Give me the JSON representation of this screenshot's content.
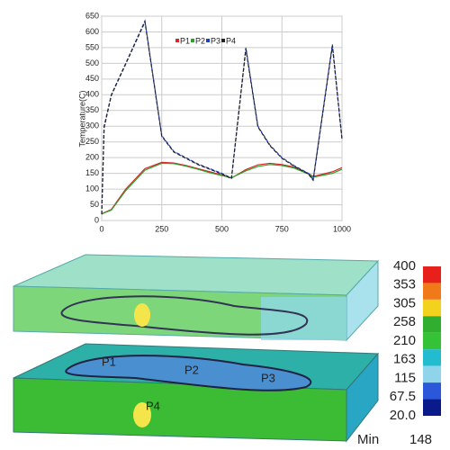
{
  "chart_data": {
    "type": "line",
    "y_label": "Temperature(C)",
    "x": [
      0,
      10,
      40,
      100,
      180,
      250,
      300,
      350,
      400,
      450,
      500,
      540,
      600,
      650,
      700,
      750,
      800,
      860,
      880,
      960,
      1000
    ],
    "series": [
      {
        "name": "P1",
        "color": "#d62728",
        "dashed": false,
        "values": [
          20,
          25,
          35,
          100,
          165,
          185,
          183,
          175,
          165,
          155,
          145,
          135,
          162,
          177,
          182,
          178,
          170,
          150,
          140,
          155,
          168
        ]
      },
      {
        "name": "P2",
        "color": "#2ca02c",
        "dashed": false,
        "values": [
          20,
          24,
          33,
          95,
          160,
          182,
          181,
          173,
          163,
          152,
          143,
          136,
          158,
          172,
          178,
          175,
          167,
          148,
          138,
          150,
          163
        ]
      },
      {
        "name": "P3",
        "color": "#1f3fbf",
        "dashed": true,
        "values": [
          20,
          300,
          400,
          500,
          635,
          270,
          220,
          200,
          180,
          165,
          150,
          135,
          550,
          300,
          240,
          200,
          175,
          150,
          130,
          560,
          260
        ]
      },
      {
        "name": "P4",
        "color": "#222222",
        "dashed": true,
        "values": [
          20,
          295,
          398,
          498,
          632,
          268,
          218,
          198,
          178,
          163,
          148,
          133,
          546,
          298,
          238,
          198,
          173,
          148,
          128,
          556,
          258
        ]
      }
    ],
    "xlim": [
      0,
      1000
    ],
    "xticks": [
      0,
      250,
      500,
      750,
      1000
    ],
    "ylim": [
      0,
      650
    ],
    "yticks": [
      0,
      50,
      100,
      150,
      200,
      250,
      300,
      350,
      400,
      450,
      500,
      550,
      600,
      650
    ],
    "grid": true
  },
  "simulation": {
    "points": [
      "P1",
      "P2",
      "P3",
      "P4"
    ],
    "colorbar": {
      "labels": [
        "400",
        "353",
        "305",
        "258",
        "210",
        "163",
        "115",
        "67.5",
        "20.0"
      ],
      "colors": [
        "#e8201c",
        "#f07a1a",
        "#f2d21c",
        "#2fae2f",
        "#36c236",
        "#22bcd0",
        "#8fd4ea",
        "#2a58d8",
        "#0a1a8a"
      ]
    },
    "min_label": "Min",
    "min_value": "148"
  }
}
